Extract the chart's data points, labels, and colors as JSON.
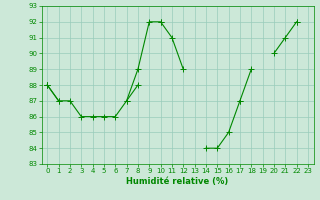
{
  "xlabel": "Humidité relative (%)",
  "bg_color": "#cce8d8",
  "grid_color": "#99ccbb",
  "line_color": "#008800",
  "ylim": [
    83,
    93
  ],
  "xlim": [
    -0.5,
    23.5
  ],
  "yticks": [
    83,
    84,
    85,
    86,
    87,
    88,
    89,
    90,
    91,
    92,
    93
  ],
  "xticks": [
    0,
    1,
    2,
    3,
    4,
    5,
    6,
    7,
    8,
    9,
    10,
    11,
    12,
    13,
    14,
    15,
    16,
    17,
    18,
    19,
    20,
    21,
    22,
    23
  ],
  "lines": [
    [
      88,
      87,
      87,
      86,
      86,
      86,
      86,
      87,
      89,
      92,
      92,
      91,
      89,
      null,
      null,
      null,
      null,
      null,
      null,
      null,
      null,
      null,
      null,
      null
    ],
    [
      88,
      87,
      null,
      null,
      null,
      null,
      null,
      null,
      null,
      null,
      92,
      null,
      null,
      null,
      84,
      84,
      85,
      87,
      null,
      null,
      null,
      null,
      null,
      null
    ],
    [
      88,
      null,
      null,
      null,
      null,
      null,
      null,
      87,
      88,
      null,
      null,
      null,
      null,
      null,
      null,
      null,
      null,
      87,
      89,
      null,
      90,
      91,
      92,
      null
    ],
    [
      88,
      null,
      null,
      null,
      null,
      null,
      null,
      null,
      null,
      null,
      null,
      null,
      null,
      null,
      null,
      null,
      null,
      null,
      null,
      null,
      null,
      null,
      92,
      null
    ]
  ]
}
